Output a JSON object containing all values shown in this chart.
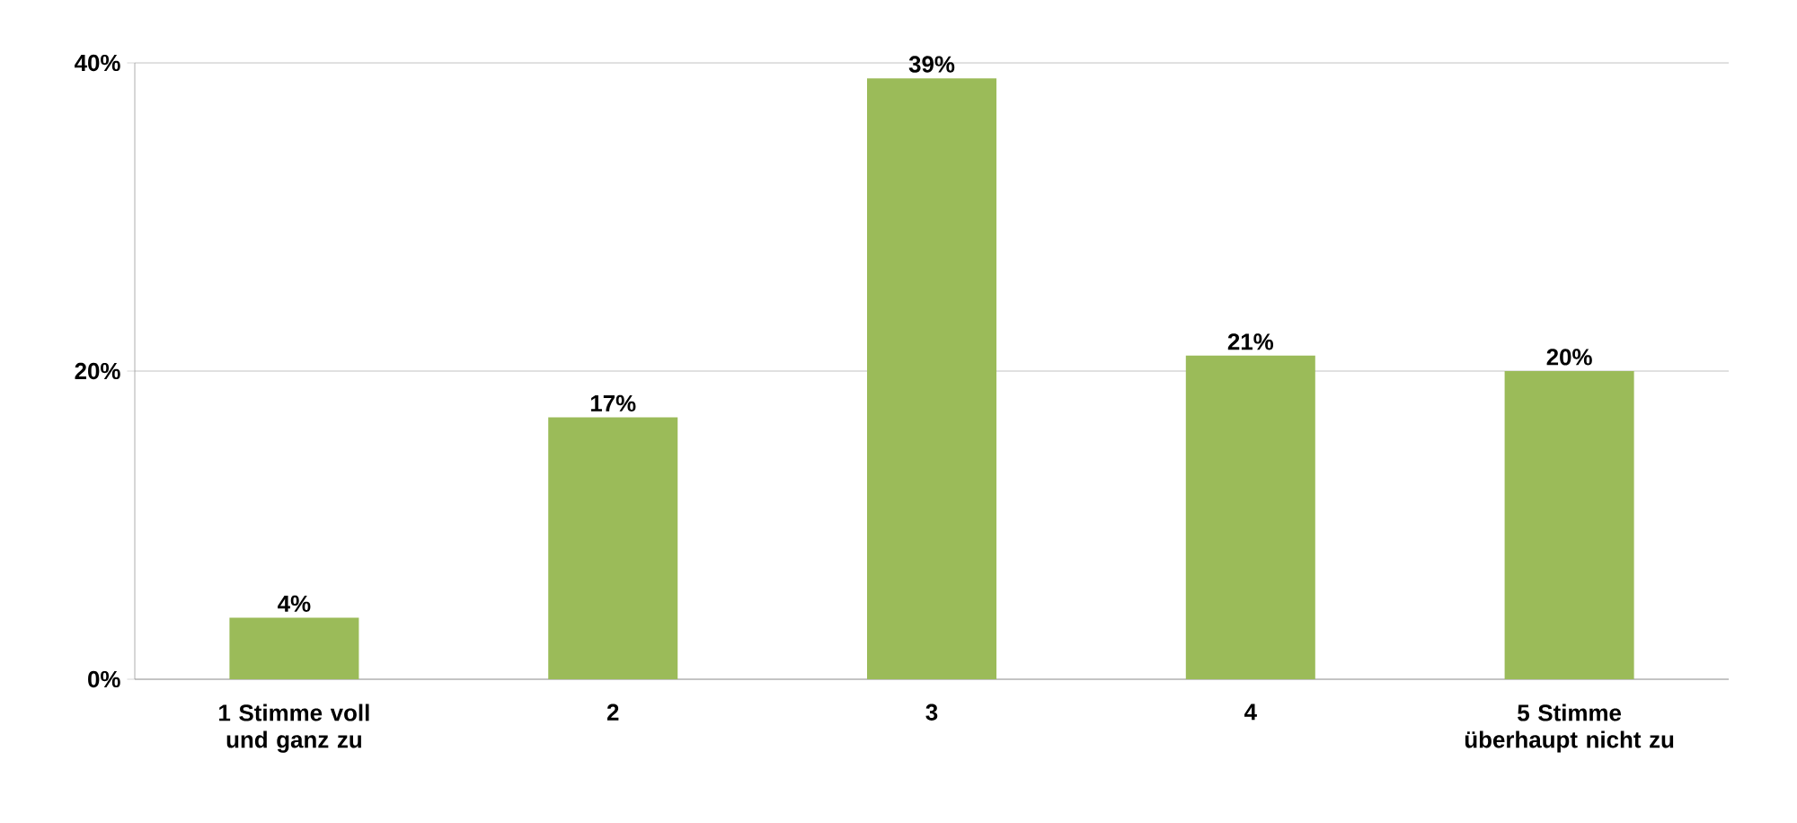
{
  "chart_data": {
    "type": "bar",
    "categories": [
      "1 Stimme voll und ganz zu",
      "2",
      "3",
      "4",
      "5 Stimme überhaupt nicht zu"
    ],
    "values": [
      4,
      17,
      39,
      21,
      20
    ],
    "value_labels": [
      "4%",
      "17%",
      "39%",
      "21%",
      "20%"
    ],
    "color": "#9bbb59",
    "ylim": [
      0,
      40
    ],
    "yticks": [
      {
        "value": 0,
        "label": "0%"
      },
      {
        "value": 20,
        "label": "20%"
      },
      {
        "value": 40,
        "label": "40%"
      }
    ],
    "grid": "y"
  }
}
